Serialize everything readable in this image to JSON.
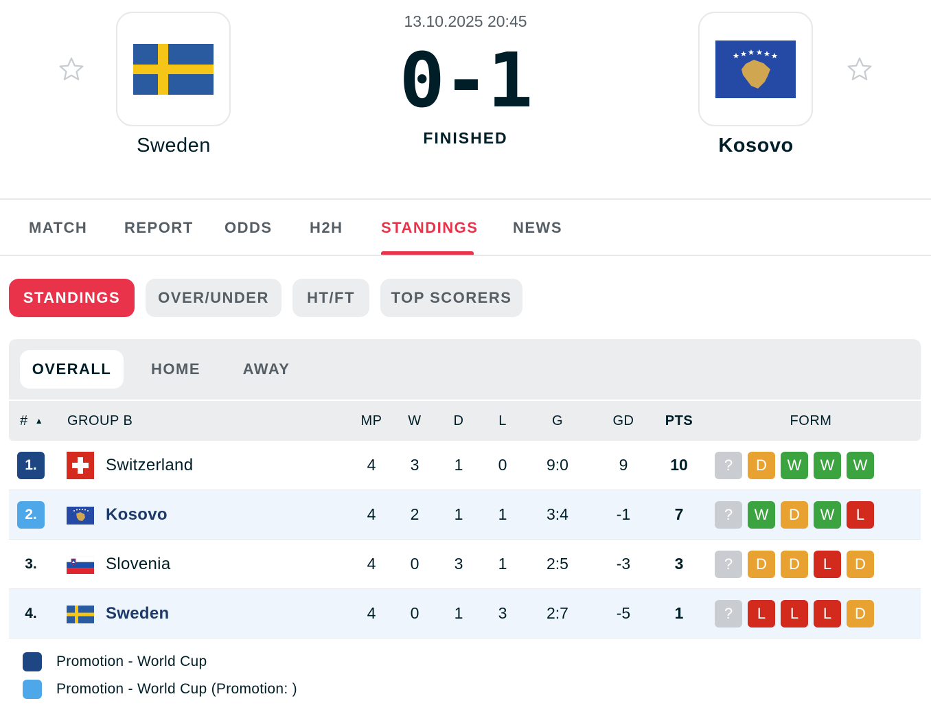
{
  "match": {
    "datetime": "13.10.2025 20:45",
    "score": "0-1",
    "status": "FINISHED",
    "home_team": "Sweden",
    "away_team": "Kosovo"
  },
  "main_tabs": [
    "MATCH",
    "REPORT",
    "ODDS",
    "H2H",
    "STANDINGS",
    "NEWS"
  ],
  "active_main_tab": "STANDINGS",
  "sub_tabs": [
    "STANDINGS",
    "OVER/UNDER",
    "HT/FT",
    "TOP SCORERS"
  ],
  "active_sub_tab": "STANDINGS",
  "filters": [
    "OVERALL",
    "HOME",
    "AWAY"
  ],
  "active_filter": "OVERALL",
  "table": {
    "headers": {
      "rank": "#",
      "sort_icon": "▲",
      "group": "GROUP B",
      "mp": "MP",
      "w": "W",
      "d": "D",
      "l": "L",
      "g": "G",
      "gd": "GD",
      "pts": "PTS",
      "form": "FORM"
    },
    "rows": [
      {
        "rank": "1.",
        "team": "Switzerland",
        "mp": "4",
        "w": "3",
        "d": "1",
        "l": "0",
        "g": "9:0",
        "gd": "9",
        "pts": "10",
        "form": [
          "?",
          "D",
          "W",
          "W",
          "W"
        ]
      },
      {
        "rank": "2.",
        "team": "Kosovo",
        "mp": "4",
        "w": "2",
        "d": "1",
        "l": "1",
        "g": "3:4",
        "gd": "-1",
        "pts": "7",
        "form": [
          "?",
          "W",
          "D",
          "W",
          "L"
        ]
      },
      {
        "rank": "3.",
        "team": "Slovenia",
        "mp": "4",
        "w": "0",
        "d": "3",
        "l": "1",
        "g": "2:5",
        "gd": "-3",
        "pts": "3",
        "form": [
          "?",
          "D",
          "D",
          "L",
          "D"
        ]
      },
      {
        "rank": "4.",
        "team": "Sweden",
        "mp": "4",
        "w": "0",
        "d": "1",
        "l": "3",
        "g": "2:7",
        "gd": "-5",
        "pts": "1",
        "form": [
          "?",
          "L",
          "L",
          "L",
          "D"
        ]
      }
    ]
  },
  "legend": [
    {
      "label": "Promotion - World Cup",
      "color": "#1d4683"
    },
    {
      "label": "Promotion - World Cup (Promotion: )",
      "color": "#4ea7e8"
    }
  ],
  "colors": {
    "accent": "#e8334a",
    "win": "#3ba33f",
    "draw": "#e8a232",
    "loss": "#d32a1e",
    "unknown": "#c9cdd1"
  }
}
